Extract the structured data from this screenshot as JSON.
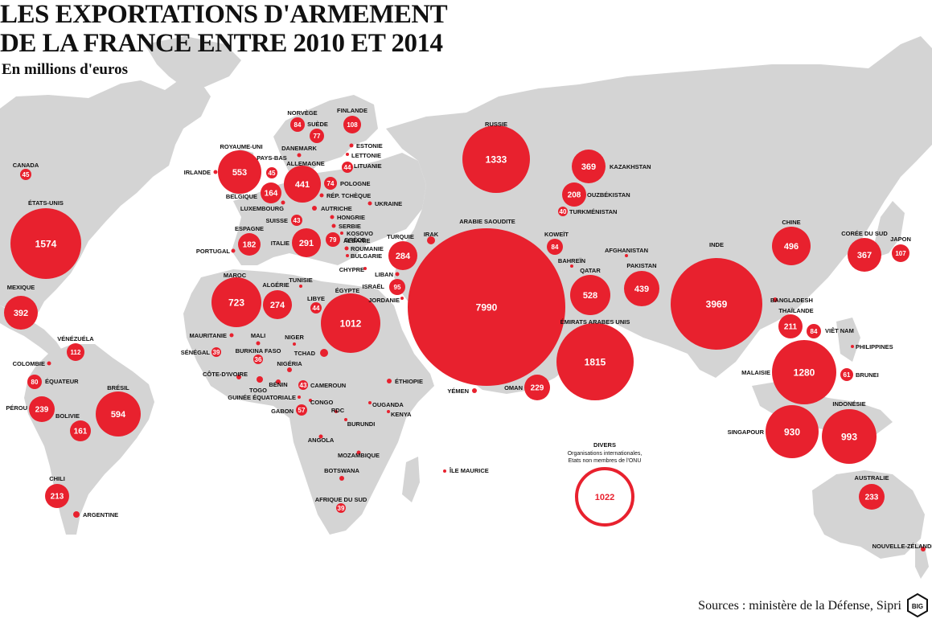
{
  "title_line1": "LES EXPORTATIONS D'ARMEMENT",
  "title_line2": "DE LA FRANCE ENTRE 2010 ET 2014",
  "subtitle": "En millions d'euros",
  "sources": "Sources : ministère de la Défense, Sipri",
  "logo_text": "BIG",
  "colors": {
    "bubble": "#e8212e",
    "land": "#d4d4d4",
    "text": "#111111",
    "bubble_text": "#ffffff"
  },
  "divers": {
    "label": "DIVERS",
    "note1": "Organisations internationales,",
    "note2": "Etats non membres de l'ONU",
    "value": "1022"
  },
  "countries": [
    {
      "name": "ARABIE SAOUDITE",
      "value": 7990
    },
    {
      "name": "INDE",
      "value": 3969
    },
    {
      "name": "ÉMIRATS ARABES UNIS",
      "value": 1815
    },
    {
      "name": "ÉTATS-UNIS",
      "value": 1574
    },
    {
      "name": "RUSSIE",
      "value": 1333
    },
    {
      "name": "MALAISIE",
      "value": 1280
    },
    {
      "name": "ÉGYPTE",
      "value": 1012
    },
    {
      "name": "INDONÉSIE",
      "value": 993
    },
    {
      "name": "SINGAPOUR",
      "value": 930
    },
    {
      "name": "MAROC",
      "value": 723
    },
    {
      "name": "BRÉSIL",
      "value": 594
    },
    {
      "name": "ROYAUME-UNI",
      "value": 553
    },
    {
      "name": "QATAR",
      "value": 528
    },
    {
      "name": "CHINE",
      "value": 496
    },
    {
      "name": "ALLEMAGNE",
      "value": 441
    },
    {
      "name": "PAKISTAN",
      "value": 439
    },
    {
      "name": "MEXIQUE",
      "value": 392
    },
    {
      "name": "KAZAKHSTAN",
      "value": 369
    },
    {
      "name": "CORÉE DU SUD",
      "value": 367
    },
    {
      "name": "ITALIE",
      "value": 291
    },
    {
      "name": "TURQUIE",
      "value": 284
    },
    {
      "name": "ALGÉRIE",
      "value": 274
    },
    {
      "name": "PÉROU",
      "value": 239
    },
    {
      "name": "AUSTRALIE",
      "value": 233
    },
    {
      "name": "OMAN",
      "value": 229
    },
    {
      "name": "CHILI",
      "value": 213
    },
    {
      "name": "THAÏLANDE",
      "value": 211
    },
    {
      "name": "OUZBÉKISTAN",
      "value": 208
    },
    {
      "name": "ESPAGNE",
      "value": 182
    },
    {
      "name": "BELGIQUE",
      "value": 164
    },
    {
      "name": "BOLIVIE",
      "value": 161
    },
    {
      "name": "VÉNÉZUÉLA",
      "value": 112
    },
    {
      "name": "FINLANDE",
      "value": 108
    },
    {
      "name": "JAPON",
      "value": 107
    },
    {
      "name": "ISRAËL",
      "value": 95
    },
    {
      "name": "NORVÈGE",
      "value": 84
    },
    {
      "name": "KOWEÏT",
      "value": 84
    },
    {
      "name": "VIÊT NAM",
      "value": 84
    },
    {
      "name": "ÉQUATEUR",
      "value": 80
    },
    {
      "name": "GRÈCE",
      "value": 79
    },
    {
      "name": "SUÈDE",
      "value": 77
    },
    {
      "name": "POLOGNE",
      "value": 74
    },
    {
      "name": "BRUNEI",
      "value": 61
    },
    {
      "name": "GABON",
      "value": 57
    },
    {
      "name": "CANADA",
      "value": 45
    },
    {
      "name": "PAYS-BAS",
      "value": 45
    },
    {
      "name": "LITUANIE",
      "value": 44
    },
    {
      "name": "LIBYE",
      "value": 44
    },
    {
      "name": "SUISSE",
      "value": 43
    },
    {
      "name": "CAMEROUN",
      "value": 43
    },
    {
      "name": "TURKMÉNISTAN",
      "value": 40
    },
    {
      "name": "SÉNÉGAL",
      "value": 39
    },
    {
      "name": "AFRIQUE DU SUD",
      "value": 39
    },
    {
      "name": "BURKINA FASO",
      "value": 36
    },
    {
      "name": "IRLANDE"
    },
    {
      "name": "LUXEMBOURG"
    },
    {
      "name": "DANEMARK"
    },
    {
      "name": "ESTONIE"
    },
    {
      "name": "LETTONIE"
    },
    {
      "name": "RÉP. TCHÈQUE"
    },
    {
      "name": "UKRAINE"
    },
    {
      "name": "AUTRICHE"
    },
    {
      "name": "HONGRIE"
    },
    {
      "name": "SERBIE"
    },
    {
      "name": "KOSOVO"
    },
    {
      "name": "ALBANIE"
    },
    {
      "name": "ROUMANIE"
    },
    {
      "name": "BULGARIE"
    },
    {
      "name": "PORTUGAL"
    },
    {
      "name": "CHYPRE"
    },
    {
      "name": "LIBAN"
    },
    {
      "name": "JORDANIE"
    },
    {
      "name": "IRAK"
    },
    {
      "name": "BAHREÏN"
    },
    {
      "name": "AFGHANISTAN"
    },
    {
      "name": "BANGLADESH"
    },
    {
      "name": "PHILIPPINES"
    },
    {
      "name": "TUNISIE"
    },
    {
      "name": "MAURITANIE"
    },
    {
      "name": "MALI"
    },
    {
      "name": "NIGER"
    },
    {
      "name": "TCHAD"
    },
    {
      "name": "NIGÉRIA"
    },
    {
      "name": "BÉNIN"
    },
    {
      "name": "TOGO"
    },
    {
      "name": "CÔTE-D'IVOIRE"
    },
    {
      "name": "GUINÉE ÉQUATORIALE"
    },
    {
      "name": "CONGO"
    },
    {
      "name": "RDC"
    },
    {
      "name": "OUGANDA"
    },
    {
      "name": "KENYA"
    },
    {
      "name": "BURUNDI"
    },
    {
      "name": "ÉTHIOPIE"
    },
    {
      "name": "YÉMEN"
    },
    {
      "name": "ANGOLA"
    },
    {
      "name": "MOZAMBIQUE"
    },
    {
      "name": "BOTSWANA"
    },
    {
      "name": "ÎLE MAURICE"
    },
    {
      "name": "COLOMBIE"
    },
    {
      "name": "ARGENTINE"
    },
    {
      "name": "NOUVELLE-ZÉLANDE"
    }
  ]
}
